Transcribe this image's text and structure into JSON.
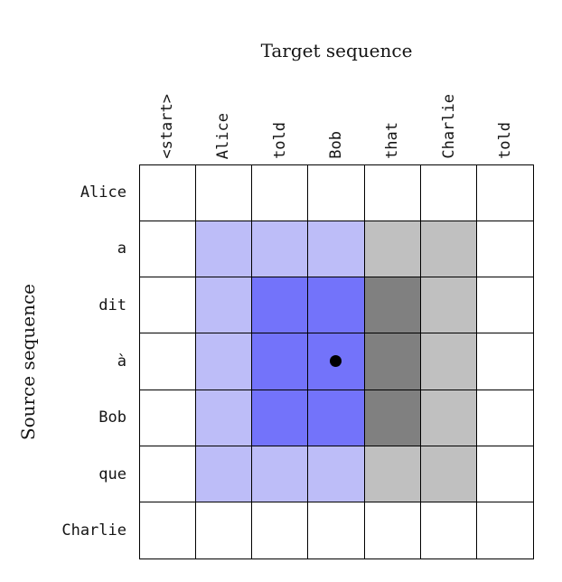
{
  "title": "Target sequence",
  "y_axis_label": "Source sequence",
  "chart_data": {
    "type": "heatmap",
    "title": "Target sequence",
    "xlabel": "Target sequence",
    "ylabel": "Source sequence",
    "columns": [
      "<start>",
      "Alice",
      "told",
      "Bob",
      "that",
      "Charlie",
      "told"
    ],
    "rows": [
      "Alice",
      "a",
      "dit",
      "à",
      "Bob",
      "que",
      "Charlie"
    ],
    "cells": [
      [
        "white",
        "white",
        "white",
        "white",
        "white",
        "white",
        "white"
      ],
      [
        "white",
        "light-blue",
        "light-blue",
        "light-blue",
        "light-gray",
        "light-gray",
        "white"
      ],
      [
        "white",
        "light-blue",
        "dark-blue",
        "dark-blue",
        "dark-gray",
        "light-gray",
        "white"
      ],
      [
        "white",
        "light-blue",
        "dark-blue",
        "dark-blue",
        "dark-gray",
        "light-gray",
        "white"
      ],
      [
        "white",
        "light-blue",
        "dark-blue",
        "dark-blue",
        "dark-gray",
        "light-gray",
        "white"
      ],
      [
        "white",
        "light-blue",
        "light-blue",
        "light-blue",
        "light-gray",
        "light-gray",
        "white"
      ],
      [
        "white",
        "white",
        "white",
        "white",
        "white",
        "white",
        "white"
      ]
    ],
    "dot": {
      "row": 3,
      "col": 3,
      "row_label": "à",
      "col_label": "Bob"
    },
    "colors": {
      "white": "#ffffff",
      "light-blue": "#bdbdf8",
      "dark-blue": "#7373fa",
      "light-gray": "#c0c0c0",
      "dark-gray": "#808080",
      "grid-line": "#000000",
      "dot": "#000000"
    },
    "legend": null,
    "grid_on": true
  }
}
